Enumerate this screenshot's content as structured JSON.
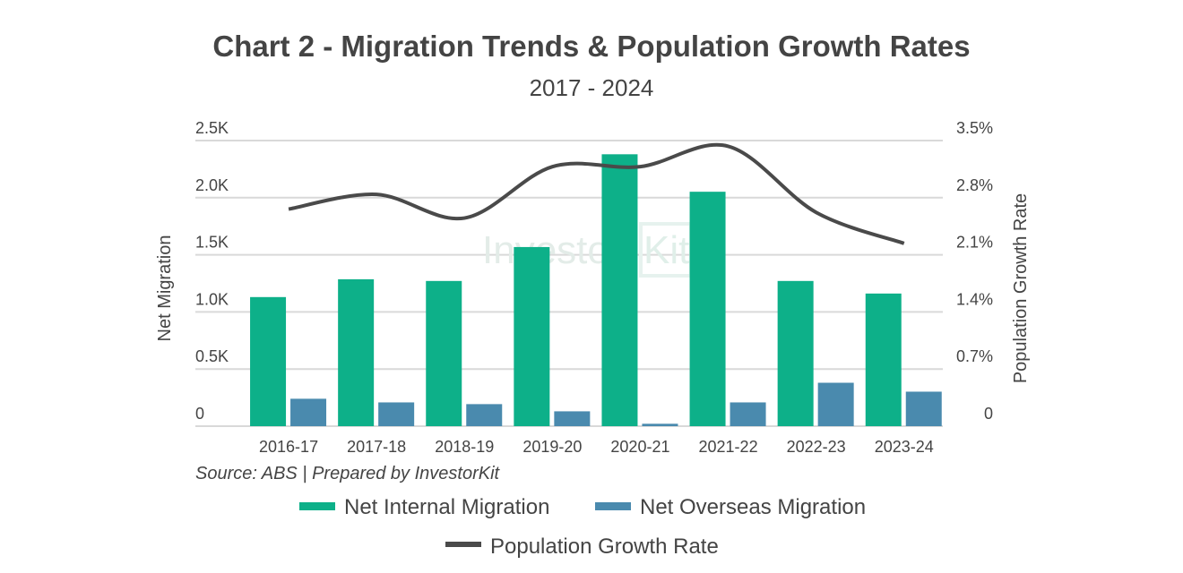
{
  "chart_data": {
    "type": "bar",
    "title": "Chart 2 - Migration Trends & Population Growth Rates",
    "subtitle": "2017 - 2024",
    "ylabel": "Net Migration",
    "y2label": "Population Growth Rate",
    "source": "Source: ABS | Prepared by InvestorKit",
    "watermark": "InvestorKit",
    "categories": [
      "2016-17",
      "2017-18",
      "2018-19",
      "2019-20",
      "2020-21",
      "2021-22",
      "2022-23",
      "2023-24"
    ],
    "ylim": [
      0,
      2500
    ],
    "yticks": [
      "0",
      "0.5K",
      "1.0K",
      "1.5K",
      "2.0K",
      "2.5K"
    ],
    "y2lim": [
      0,
      3.5
    ],
    "y2ticks": [
      "0",
      "0.7%",
      "1.4%",
      "2.1%",
      "2.8%",
      "3.5%"
    ],
    "grid": true,
    "legend_position": "bottom",
    "series": [
      {
        "name": "Net Internal Migration",
        "type": "bar",
        "color": "#0db089",
        "values": [
          1130,
          1286,
          1271,
          1568,
          2380,
          2052,
          1271,
          1161
        ]
      },
      {
        "name": "Net Overseas Migration",
        "type": "bar",
        "color": "#4a8aae",
        "values": [
          240,
          208,
          193,
          130,
          21,
          208,
          380,
          302
        ]
      },
      {
        "name": "Population Growth Rate",
        "type": "line",
        "axis": "right",
        "color": "#4a4a4a",
        "values": [
          2.66,
          2.84,
          2.55,
          3.18,
          3.18,
          3.43,
          2.62,
          2.24
        ]
      }
    ]
  }
}
